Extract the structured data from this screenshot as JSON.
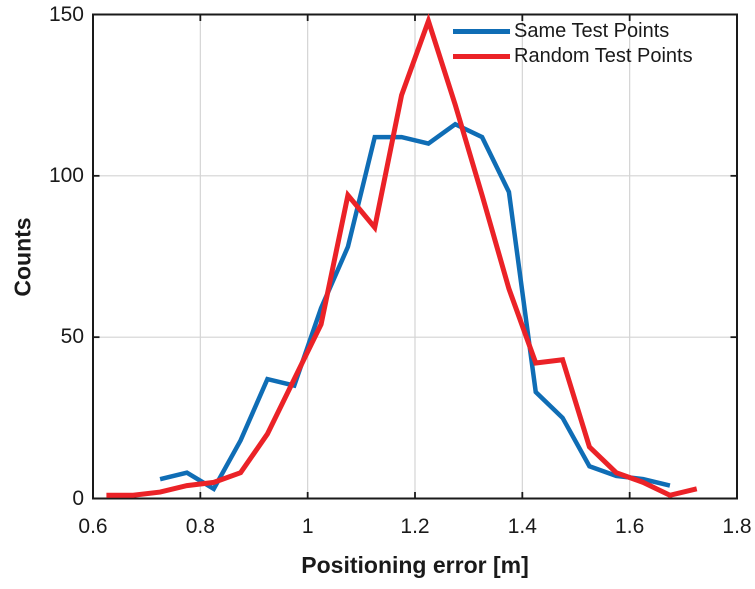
{
  "chart_data": {
    "type": "line",
    "title": "",
    "xlabel": "Positioning error [m]",
    "ylabel": "Counts",
    "xlim": [
      0.6,
      1.8
    ],
    "ylim": [
      0,
      150
    ],
    "xticks": [
      0.6,
      0.8,
      1.0,
      1.2,
      1.4,
      1.6,
      1.8
    ],
    "xtick_labels": [
      "0.6",
      "0.8",
      "1",
      "1.2",
      "1.4",
      "1.6",
      "1.8"
    ],
    "yticks": [
      0,
      50,
      100,
      150
    ],
    "ytick_labels": [
      "0",
      "50",
      "100",
      "150"
    ],
    "grid": "on",
    "grid_color": "#d4d4d4",
    "axis_color": "#1a1a1a",
    "legend_position": "top-right-inside",
    "legend_box": false,
    "series": [
      {
        "name": "Same Test Points",
        "color": "#0f6db5",
        "x": [
          0.725,
          0.775,
          0.825,
          0.875,
          0.925,
          0.975,
          1.025,
          1.075,
          1.125,
          1.175,
          1.225,
          1.275,
          1.325,
          1.375,
          1.425,
          1.475,
          1.525,
          1.575,
          1.625,
          1.675
        ],
        "values": [
          6,
          8,
          3,
          18,
          37,
          35,
          59,
          78,
          112,
          112,
          110,
          116,
          112,
          95,
          33,
          25,
          10,
          7,
          6,
          4
        ]
      },
      {
        "name": "Random Test Points",
        "color": "#eb2227",
        "x": [
          0.625,
          0.675,
          0.725,
          0.775,
          0.825,
          0.875,
          0.925,
          0.975,
          1.025,
          1.075,
          1.125,
          1.175,
          1.225,
          1.275,
          1.325,
          1.375,
          1.425,
          1.475,
          1.525,
          1.575,
          1.625,
          1.675,
          1.725
        ],
        "values": [
          1,
          1,
          2,
          4,
          5,
          8,
          20,
          37,
          54,
          94,
          84,
          125,
          148,
          122,
          94,
          65,
          42,
          43,
          16,
          8,
          5,
          1,
          3
        ]
      }
    ]
  }
}
